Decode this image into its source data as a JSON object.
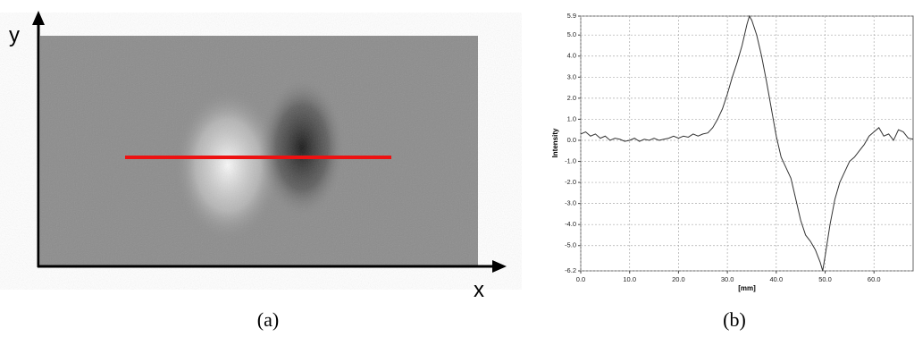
{
  "panel_a": {
    "y_label": "y",
    "x_label": "x",
    "caption": "(a)"
  },
  "chart_data": {
    "type": "line",
    "caption": "(b)",
    "ylabel": "Intensity",
    "xlabel": "[mm]",
    "color": "#333333",
    "grid": true,
    "x": [
      0,
      1,
      2,
      3,
      4,
      5,
      6,
      7,
      8,
      9,
      10,
      11,
      12,
      13,
      14,
      15,
      16,
      17,
      18,
      19,
      20,
      21,
      22,
      23,
      24,
      25,
      26,
      27,
      28,
      29,
      30,
      31,
      32,
      33,
      34,
      34.5,
      35,
      36,
      37,
      38,
      39,
      40,
      41,
      42,
      43,
      44,
      45,
      46,
      47,
      48,
      49,
      49.5,
      50,
      51,
      52,
      53,
      54,
      55,
      56,
      57,
      58,
      59,
      60,
      61,
      62,
      63,
      64,
      65,
      66,
      67,
      68
    ],
    "values": [
      0.3,
      0.4,
      0.2,
      0.3,
      0.1,
      0.2,
      0.0,
      0.1,
      0.05,
      -0.05,
      0.0,
      0.1,
      -0.05,
      0.05,
      0.0,
      0.1,
      0.0,
      0.05,
      0.1,
      0.2,
      0.1,
      0.2,
      0.15,
      0.3,
      0.2,
      0.3,
      0.35,
      0.6,
      1.0,
      1.5,
      2.2,
      3.0,
      3.7,
      4.5,
      5.5,
      5.9,
      5.7,
      5.0,
      4.0,
      2.8,
      1.5,
      0.2,
      -0.8,
      -1.3,
      -1.8,
      -2.8,
      -3.8,
      -4.5,
      -4.8,
      -5.2,
      -5.8,
      -6.2,
      -5.5,
      -4.0,
      -2.8,
      -2.0,
      -1.5,
      -1.0,
      -0.8,
      -0.5,
      -0.2,
      0.2,
      0.4,
      0.6,
      0.2,
      0.3,
      0.0,
      0.5,
      0.4,
      0.1,
      0.05
    ],
    "xlim": [
      0,
      68
    ],
    "ylim": [
      -6.2,
      5.9
    ],
    "xticks": [
      {
        "value": 0,
        "label": "0.0"
      },
      {
        "value": 10,
        "label": "10.0"
      },
      {
        "value": 20,
        "label": "20.0"
      },
      {
        "value": 30,
        "label": "30.0"
      },
      {
        "value": 40,
        "label": "40.0"
      },
      {
        "value": 50,
        "label": "50.0"
      },
      {
        "value": 60,
        "label": "60.0"
      }
    ],
    "yticks": [
      {
        "value": 5.9,
        "label": "5.9"
      },
      {
        "value": 5,
        "label": "5.0"
      },
      {
        "value": 4,
        "label": "4.0"
      },
      {
        "value": 3,
        "label": "3.0"
      },
      {
        "value": 2,
        "label": "2.0"
      },
      {
        "value": 1,
        "label": "1.0"
      },
      {
        "value": 0,
        "label": "0.0"
      },
      {
        "value": -1,
        "label": "-1.0"
      },
      {
        "value": -2,
        "label": "-2.0"
      },
      {
        "value": -3,
        "label": "-3.0"
      },
      {
        "value": -4,
        "label": "-4.0"
      },
      {
        "value": -5,
        "label": "-5.0"
      },
      {
        "value": -6.2,
        "label": "-6.2"
      }
    ]
  }
}
